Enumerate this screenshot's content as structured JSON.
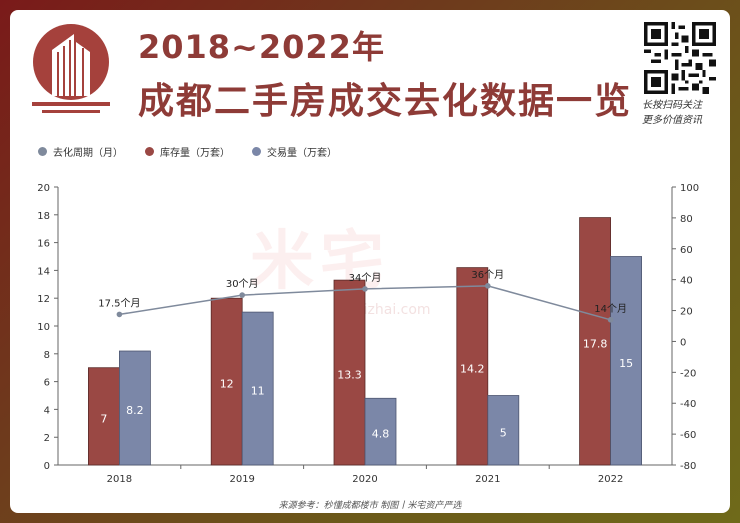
{
  "header": {
    "title_line1": "2018~2022年",
    "title_line2": "成都二手房成交去化数据一览",
    "qr_caption_line1": "长按扫码关注",
    "qr_caption_line2": "更多价值资讯"
  },
  "watermark": {
    "text": "米宅",
    "url": "mizhai.com"
  },
  "footer": {
    "source": "来源参考：秒懂成都楼市 制图丨米宅资产严选"
  },
  "colors": {
    "stock": "#9a4844",
    "volume": "#7b87a8",
    "cycle_line": "#7f8a9c",
    "title": "#8e3b37"
  },
  "chart_data": {
    "type": "bar",
    "categories": [
      "2018",
      "2019",
      "2020",
      "2021",
      "2022"
    ],
    "series": [
      {
        "name": "库存量（万套）",
        "type": "bar",
        "axis": "left",
        "color": "#9a4844",
        "values": [
          7,
          12,
          13.3,
          14.2,
          17.8
        ],
        "labels": [
          "7",
          "12",
          "13.3",
          "14.2",
          "17.8"
        ]
      },
      {
        "name": "交易量（万套）",
        "type": "bar",
        "axis": "left",
        "color": "#7b87a8",
        "values": [
          8.2,
          11,
          4.8,
          5,
          15
        ],
        "labels": [
          "8.2",
          "11",
          "4.8",
          "5",
          "15"
        ]
      },
      {
        "name": "去化周期（月）",
        "type": "line",
        "axis": "right",
        "color": "#7f8a9c",
        "values": [
          17.5,
          30,
          34,
          36,
          14
        ],
        "labels": [
          "17.5个月",
          "30个月",
          "34个月",
          "36个月",
          "14个月"
        ]
      }
    ],
    "legend_order": [
      "去化周期（月）",
      "库存量（万套）",
      "交易量（万套）"
    ],
    "legend_position": "top-left",
    "y_left": {
      "min": 0,
      "max": 20,
      "ticks": [
        "0",
        "2",
        "4",
        "6",
        "8",
        "10",
        "12",
        "14",
        "16",
        "18",
        "20"
      ]
    },
    "y_right": {
      "min": -80,
      "max": 100,
      "ticks": [
        "-80",
        "-60",
        "-40",
        "-20",
        "0",
        "20",
        "40",
        "60",
        "80",
        "100"
      ]
    },
    "grid": false
  }
}
